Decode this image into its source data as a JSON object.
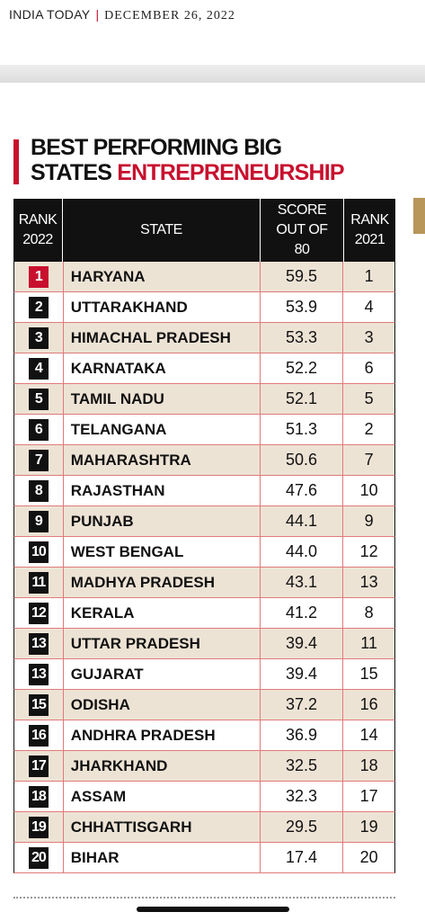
{
  "header": {
    "publication": "INDIA TODAY",
    "date": "DECEMBER 26, 2022"
  },
  "title": {
    "line1": "BEST PERFORMING BIG",
    "line2": "STATES",
    "highlight": "ENTREPRENEURSHIP"
  },
  "table": {
    "columns": [
      "RANK 2022",
      "STATE",
      "SCORE OUT OF 80",
      "RANK 2021"
    ],
    "rows": [
      [
        "1",
        "HARYANA",
        "59.5",
        "1"
      ],
      [
        "2",
        "UTTARAKHAND",
        "53.9",
        "4"
      ],
      [
        "3",
        "HIMACHAL PRADESH",
        "53.3",
        "3"
      ],
      [
        "4",
        "KARNATAKA",
        "52.2",
        "6"
      ],
      [
        "5",
        "TAMIL NADU",
        "52.1",
        "5"
      ],
      [
        "6",
        "TELANGANA",
        "51.3",
        "2"
      ],
      [
        "7",
        "MAHARASHTRA",
        "50.6",
        "7"
      ],
      [
        "8",
        "RAJASTHAN",
        "47.6",
        "10"
      ],
      [
        "9",
        "PUNJAB",
        "44.1",
        "9"
      ],
      [
        "10",
        "WEST BENGAL",
        "44.0",
        "12"
      ],
      [
        "11",
        "MADHYA PRADESH",
        "43.1",
        "13"
      ],
      [
        "12",
        "KERALA",
        "41.2",
        "8"
      ],
      [
        "13",
        "UTTAR PRADESH",
        "39.4",
        "11"
      ],
      [
        "13",
        "GUJARAT",
        "39.4",
        "15"
      ],
      [
        "15",
        "ODISHA",
        "37.2",
        "16"
      ],
      [
        "16",
        "ANDHRA PRADESH",
        "36.9",
        "14"
      ],
      [
        "17",
        "JHARKHAND",
        "32.5",
        "18"
      ],
      [
        "18",
        "ASSAM",
        "32.3",
        "17"
      ],
      [
        "19",
        "CHHATTISGARH",
        "29.5",
        "19"
      ],
      [
        "20",
        "BIHAR",
        "17.4",
        "20"
      ]
    ]
  }
}
